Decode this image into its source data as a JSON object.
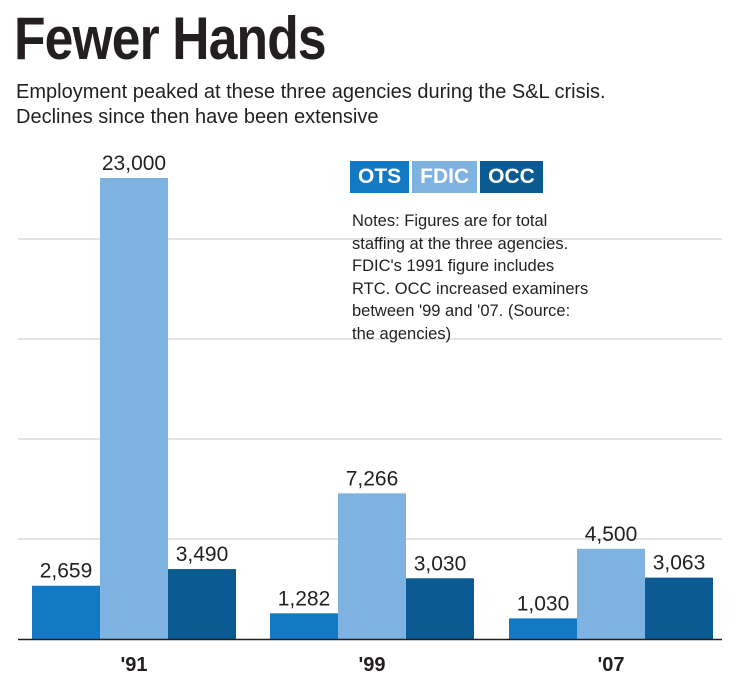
{
  "title": "Fewer Hands",
  "subtitle_lines": [
    "Employment peaked at these three agencies during the S&L crisis.",
    "Declines since then have been extensive"
  ],
  "notes_lines": [
    "Notes: Figures are for total",
    "staffing at the three agencies.",
    "FDIC's 1991 figure includes",
    "RTC. OCC increased examiners",
    "between '99 and '07. (Source:",
    "the agencies)"
  ],
  "chart_data": {
    "type": "bar",
    "categories": [
      "'91",
      "'99",
      "'07"
    ],
    "series": [
      {
        "name": "OTS",
        "color": "#1479c4",
        "values": [
          2659,
          1282,
          1030
        ],
        "labels": [
          "2,659",
          "1,282",
          "1,030"
        ]
      },
      {
        "name": "FDIC",
        "color": "#7eb2e0",
        "values": [
          23000,
          7266,
          4500
        ],
        "labels": [
          "23,000",
          "7,266",
          "4,500"
        ]
      },
      {
        "name": "OCC",
        "color": "#0b5a92",
        "values": [
          3490,
          3030,
          3063
        ],
        "labels": [
          "3,490",
          "3,030",
          "3,063"
        ]
      }
    ],
    "ylim": [
      0,
      23000
    ],
    "grid": true,
    "legend": "top-right"
  }
}
